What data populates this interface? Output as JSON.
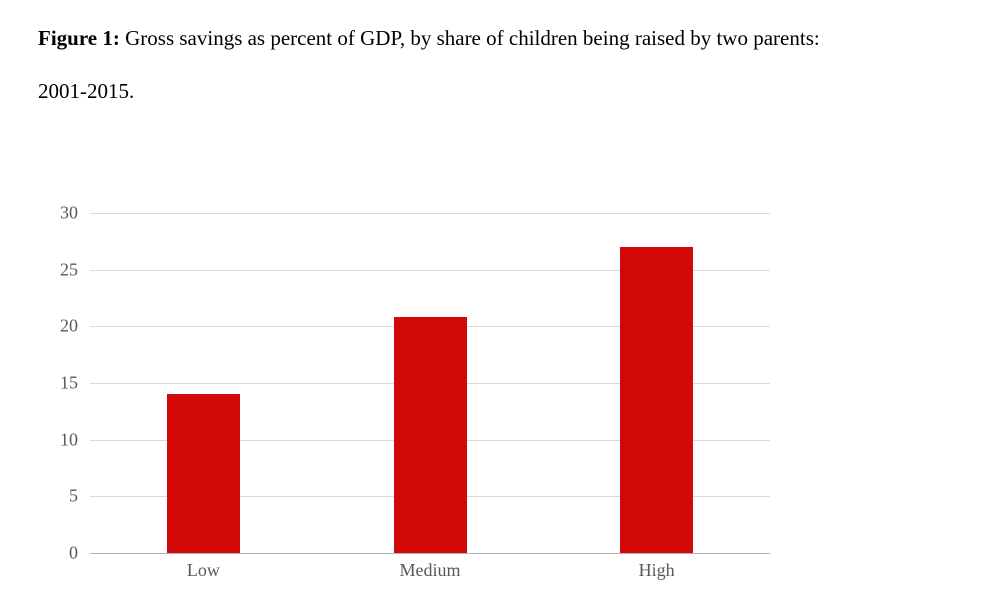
{
  "caption": {
    "figure_label": "Figure 1:",
    "line1": " Gross savings as percent of GDP, by share of children being raised by two parents:",
    "line2": "2001-2015."
  },
  "chart_data": {
    "type": "bar",
    "title": "Gross savings as percent of GDP, by share of children being raised by two parents: 2001-2015",
    "categories": [
      "Low",
      "Medium",
      "High"
    ],
    "values": [
      14,
      20.8,
      27
    ],
    "xlabel": "",
    "ylabel": "",
    "ylim": [
      0,
      30
    ],
    "yticks": [
      0,
      5,
      10,
      15,
      20,
      25,
      30
    ],
    "grid": true,
    "legend": false,
    "colors": {
      "bar": "#d20909",
      "gridline": "#d9d9d9",
      "axis_line": "#b3b3b3",
      "tick_label": "#595959",
      "caption_text": "#000000"
    }
  }
}
